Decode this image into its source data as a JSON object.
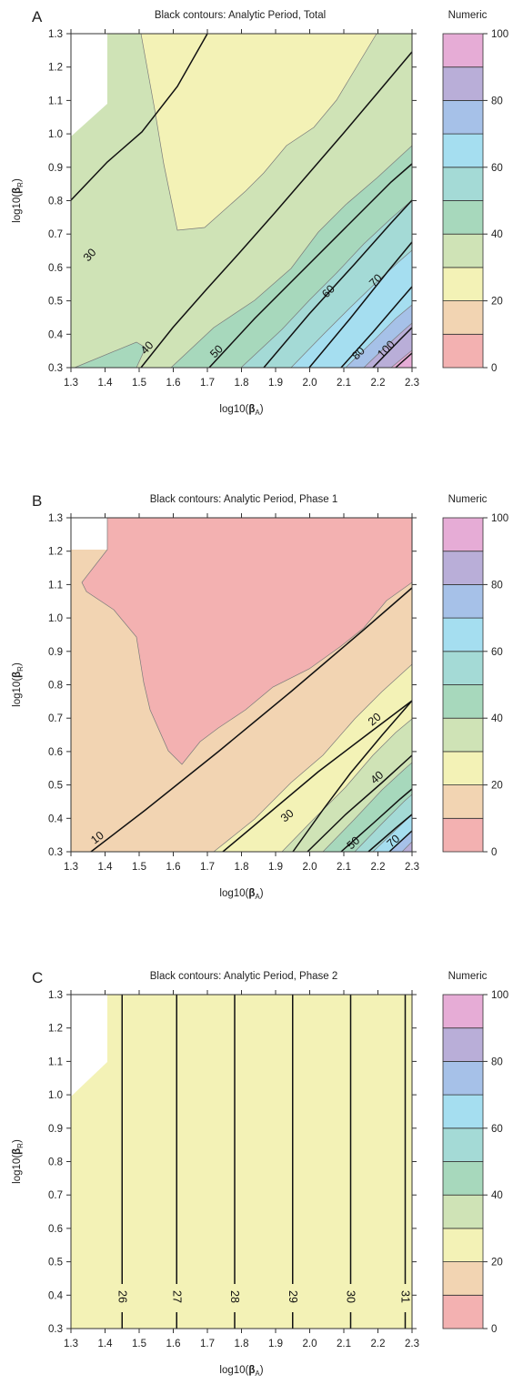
{
  "figure": {
    "panels": [
      {
        "letter": "A",
        "title": "Black contours: Analytic Period, Total",
        "legend_title": "Numeric"
      },
      {
        "letter": "B",
        "title": "Black contours: Analytic Period, Phase 1",
        "legend_title": "Numeric"
      },
      {
        "letter": "C",
        "title": "Black contours: Analytic Period, Phase 2",
        "legend_title": "Numeric"
      }
    ]
  },
  "chart_data": [
    {
      "type": "contour",
      "title": "Black contours: Analytic Period, Total",
      "panel": "A",
      "xlabel": "log10(βA)",
      "ylabel": "log10(βR)",
      "xlim": [
        1.3,
        2.3
      ],
      "ylim": [
        0.3,
        1.3
      ],
      "xticks": [
        "1.3",
        "1.4",
        "1.5",
        "1.6",
        "1.7",
        "1.8",
        "1.9",
        "2.0",
        "2.1",
        "2.2",
        "2.3"
      ],
      "yticks": [
        "0.3",
        "0.4",
        "0.5",
        "0.6",
        "0.7",
        "0.8",
        "0.9",
        "1.0",
        "1.1",
        "1.2",
        "1.3"
      ],
      "colorbar": {
        "title": "Numeric",
        "range": [
          0,
          100
        ],
        "bin_width": 10,
        "tick_labels": [
          "0",
          "20",
          "40",
          "60",
          "80",
          "100"
        ],
        "colors": [
          "#f3b1b1",
          "#f2d4b2",
          "#f3f2b6",
          "#cfe3b6",
          "#a7d8bc",
          "#a4dad6",
          "#a5def0",
          "#a6c1e8",
          "#b9aed8",
          "#e6acd6"
        ]
      },
      "filled_region_boundaries": [
        {
          "level": 30,
          "points": [
            [
              1.62,
              0.3
            ],
            [
              1.75,
              0.43
            ],
            [
              1.85,
              0.55
            ],
            [
              1.95,
              0.65
            ],
            [
              2.05,
              0.75
            ],
            [
              2.15,
              0.85
            ],
            [
              2.25,
              0.95
            ],
            [
              2.3,
              1.0
            ]
          ]
        },
        {
          "level": 40,
          "points": [
            [
              1.82,
              0.3
            ],
            [
              1.95,
              0.45
            ],
            [
              2.05,
              0.55
            ],
            [
              2.15,
              0.65
            ],
            [
              2.25,
              0.75
            ],
            [
              2.3,
              0.8
            ]
          ]
        },
        {
          "level": 50,
          "points": [
            [
              1.97,
              0.3
            ],
            [
              2.1,
              0.45
            ],
            [
              2.2,
              0.55
            ],
            [
              2.3,
              0.65
            ]
          ]
        }
      ],
      "contours": [
        {
          "label": "30",
          "points": [
            [
              1.3,
              0.57
            ],
            [
              1.4,
              0.68
            ],
            [
              1.5,
              0.83
            ],
            [
              1.6,
              1.08
            ],
            [
              1.7,
              1.3
            ]
          ]
        },
        {
          "label": "40",
          "points": [
            [
              1.5,
              0.3
            ],
            [
              1.6,
              0.42
            ],
            [
              1.7,
              0.53
            ],
            [
              1.8,
              0.65
            ],
            [
              1.9,
              0.77
            ],
            [
              2.0,
              0.9
            ],
            [
              2.1,
              1.02
            ],
            [
              2.2,
              1.15
            ],
            [
              2.3,
              1.27
            ]
          ]
        },
        {
          "label": "50",
          "points": [
            [
              1.85,
              0.3
            ],
            [
              2.0,
              0.45
            ],
            [
              2.15,
              0.6
            ],
            [
              2.3,
              0.75
            ]
          ]
        },
        {
          "label": "60",
          "points": [
            [
              1.93,
              0.3
            ],
            [
              2.1,
              0.5
            ],
            [
              2.3,
              0.7
            ]
          ]
        },
        {
          "label": "70",
          "points": [
            [
              2.05,
              0.3
            ],
            [
              2.2,
              0.46
            ],
            [
              2.3,
              0.6
            ]
          ]
        },
        {
          "label": "80",
          "points": [
            [
              2.15,
              0.3
            ],
            [
              2.3,
              0.45
            ]
          ]
        },
        {
          "label": "100",
          "points": [
            [
              2.25,
              0.3
            ],
            [
              2.3,
              0.35
            ]
          ]
        }
      ]
    },
    {
      "type": "contour",
      "title": "Black contours: Analytic Period, Phase 1",
      "panel": "B",
      "xlabel": "log10(βA)",
      "ylabel": "log10(βR)",
      "xlim": [
        1.3,
        2.3
      ],
      "ylim": [
        0.3,
        1.3
      ],
      "xticks": [
        "1.3",
        "1.4",
        "1.5",
        "1.6",
        "1.7",
        "1.8",
        "1.9",
        "2.0",
        "2.1",
        "2.2",
        "2.3"
      ],
      "yticks": [
        "0.3",
        "0.4",
        "0.5",
        "0.6",
        "0.7",
        "0.8",
        "0.9",
        "1.0",
        "1.1",
        "1.2",
        "1.3"
      ],
      "colorbar": {
        "title": "Numeric",
        "range": [
          0,
          100
        ],
        "bin_width": 10,
        "tick_labels": [
          "0",
          "20",
          "40",
          "60",
          "80",
          "100"
        ],
        "colors": [
          "#f3b1b1",
          "#f2d4b2",
          "#f3f2b6",
          "#cfe3b6",
          "#a7d8bc",
          "#a4dad6",
          "#a5def0",
          "#a6c1e8",
          "#b9aed8",
          "#e6acd6"
        ]
      },
      "contours": [
        {
          "label": "10",
          "points": [
            [
              1.38,
              0.33
            ],
            [
              1.5,
              0.42
            ],
            [
              1.6,
              0.5
            ],
            [
              1.7,
              0.58
            ],
            [
              1.8,
              0.67
            ],
            [
              1.9,
              0.76
            ],
            [
              2.0,
              0.86
            ],
            [
              2.1,
              0.96
            ],
            [
              2.2,
              1.06
            ],
            [
              2.3,
              1.16
            ]
          ]
        },
        {
          "label": "20",
          "points": [
            [
              1.65,
              0.3
            ],
            [
              1.8,
              0.42
            ],
            [
              1.9,
              0.51
            ],
            [
              2.0,
              0.61
            ],
            [
              2.1,
              0.71
            ],
            [
              2.2,
              0.81
            ],
            [
              2.3,
              0.92
            ]
          ]
        },
        {
          "label": "30",
          "points": [
            [
              1.85,
              0.3
            ],
            [
              2.0,
              0.44
            ],
            [
              2.15,
              0.58
            ],
            [
              2.3,
              0.73
            ]
          ]
        },
        {
          "label": "40",
          "points": [
            [
              1.95,
              0.3
            ],
            [
              2.1,
              0.45
            ],
            [
              2.3,
              0.63
            ]
          ]
        },
        {
          "label": "50",
          "points": [
            [
              2.05,
              0.3
            ],
            [
              2.2,
              0.44
            ],
            [
              2.3,
              0.53
            ]
          ]
        },
        {
          "label": "70",
          "points": [
            [
              2.2,
              0.3
            ],
            [
              2.3,
              0.4
            ]
          ]
        }
      ]
    },
    {
      "type": "contour",
      "title": "Black contours: Analytic Period, Phase 2",
      "panel": "C",
      "xlabel": "log10(βA)",
      "ylabel": "log10(βR)",
      "xlim": [
        1.3,
        2.3
      ],
      "ylim": [
        0.3,
        1.3
      ],
      "xticks": [
        "1.3",
        "1.4",
        "1.5",
        "1.6",
        "1.7",
        "1.8",
        "1.9",
        "2.0",
        "2.1",
        "2.2",
        "2.3"
      ],
      "yticks": [
        "0.3",
        "0.4",
        "0.5",
        "0.6",
        "0.7",
        "0.8",
        "0.9",
        "1.0",
        "1.1",
        "1.2",
        "1.3"
      ],
      "colorbar": {
        "title": "Numeric",
        "range": [
          0,
          100
        ],
        "bin_width": 10,
        "tick_labels": [
          "0",
          "20",
          "40",
          "60",
          "80",
          "100"
        ],
        "colors": [
          "#f3b1b1",
          "#f2d4b2",
          "#f3f2b6",
          "#cfe3b6",
          "#a7d8bc",
          "#a4dad6",
          "#a5def0",
          "#a6c1e8",
          "#b9aed8",
          "#e6acd6"
        ]
      },
      "contours": [
        {
          "label": "26",
          "x": 1.45
        },
        {
          "label": "27",
          "x": 1.61
        },
        {
          "label": "28",
          "x": 1.78
        },
        {
          "label": "29",
          "x": 1.95
        },
        {
          "label": "30",
          "x": 2.12
        },
        {
          "label": "31",
          "x": 2.28
        }
      ]
    }
  ]
}
